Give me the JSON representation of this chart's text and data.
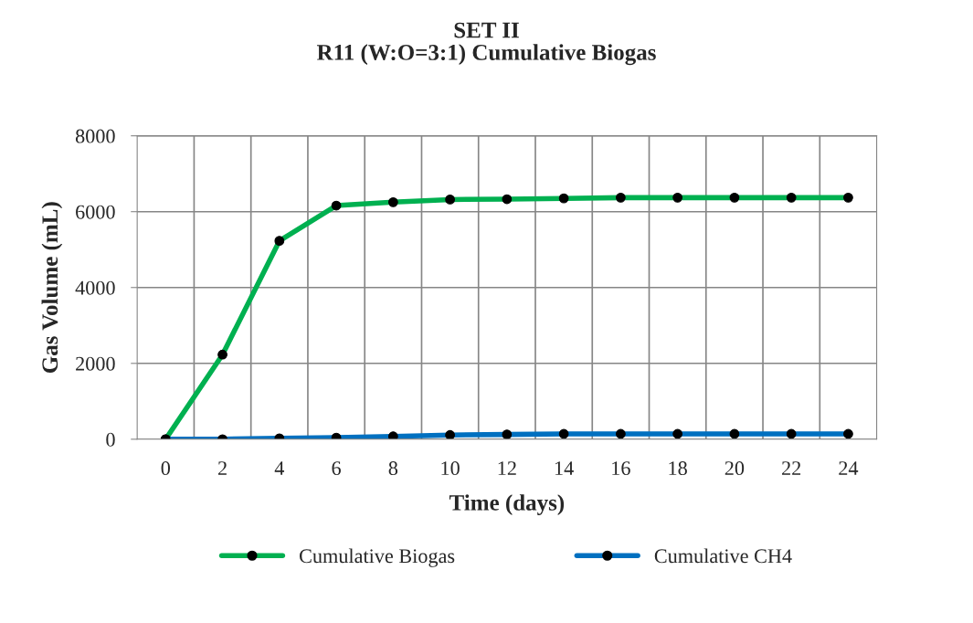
{
  "chart_data": {
    "type": "line",
    "title": "SET II\nR11 (W:O=3:1) Cumulative Biogas",
    "xlabel": "Time (days)",
    "ylabel": "Gas Volume (mL)",
    "categories": [
      "0",
      "2",
      "4",
      "6",
      "8",
      "10",
      "12",
      "14",
      "16",
      "18",
      "20",
      "22",
      "24"
    ],
    "series": [
      {
        "name": "Cumulative Biogas",
        "color": "#00b050",
        "values": [
          0,
          2230,
          5230,
          6160,
          6250,
          6320,
          6330,
          6350,
          6370,
          6370,
          6370,
          6370,
          6370
        ]
      },
      {
        "name": "Cumulative CH4",
        "color": "#0070c0",
        "values": [
          0,
          0,
          25,
          40,
          75,
          110,
          125,
          140,
          140,
          140,
          140,
          140,
          140
        ]
      }
    ],
    "ylim": [
      0,
      8000
    ],
    "yticks": [
      0,
      2000,
      4000,
      6000,
      8000
    ],
    "grid": true,
    "legend": "bottom",
    "marker": "circle",
    "line_style": "solid"
  }
}
